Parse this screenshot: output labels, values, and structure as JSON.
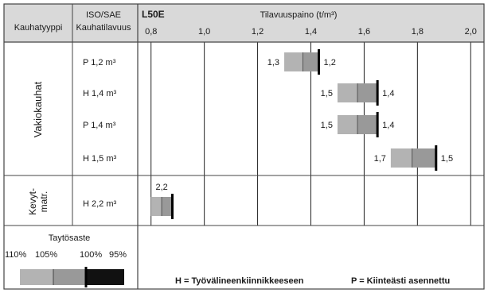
{
  "header": {
    "col1_label": "Kauhatyyppi",
    "col2_line1": "ISO/SAE",
    "col2_line2": "Kauhatilavuus",
    "model": "L50E",
    "axis_title": "Tilavuuspaino (t/m³)"
  },
  "groups": [
    {
      "label": "Vakiokauhat"
    },
    {
      "label_line1": "Kevyt-",
      "label_line2": "matr."
    }
  ],
  "legend": {
    "title": "Taytösaste",
    "levels": [
      "110%",
      "105%",
      "100%",
      "95%"
    ]
  },
  "footer": {
    "h_note": "H = Työvälineenkiinnikkeeseen",
    "p_note": "P = Kiinteästi asennettu"
  },
  "colors": {
    "border": "#444444",
    "header_bg": "#d9d9d9",
    "bar_light": "#b3b3b3",
    "bar_mid": "#999999",
    "marker": "#000000",
    "grid": "#222222"
  },
  "chart_data": {
    "type": "range-bar",
    "xlim": [
      0.75,
      2.05
    ],
    "ticks": [
      "0,8",
      "1,0",
      "1,2",
      "1,4",
      "1,6",
      "1,8",
      "2,0"
    ],
    "tick_values": [
      0.8,
      1.0,
      1.2,
      1.4,
      1.6,
      1.8,
      2.0
    ],
    "rows": [
      {
        "group": 0,
        "label": "P 1,2 m³",
        "fill_110": 1.3,
        "fill_105": 1.37,
        "fill_100": 1.43,
        "fill_95": 1.5,
        "left_label": "1,3",
        "right_label": "1,2"
      },
      {
        "group": 0,
        "label": "H 1,4 m³",
        "fill_110": 1.5,
        "fill_105": 1.575,
        "fill_100": 1.65,
        "fill_95": 1.73,
        "left_label": "1,5",
        "right_label": "1,4"
      },
      {
        "group": 0,
        "label": "P 1,4 m³",
        "fill_110": 1.5,
        "fill_105": 1.575,
        "fill_100": 1.65,
        "fill_95": 1.73,
        "left_label": "1,5",
        "right_label": "1,4"
      },
      {
        "group": 0,
        "label": "H 1,5 m³",
        "fill_110": 1.7,
        "fill_105": 1.78,
        "fill_100": 1.87,
        "fill_95": 1.96,
        "left_label": "1,7",
        "right_label": "1,5"
      },
      {
        "group": 1,
        "label": "H 2,2 m³",
        "fill_110": 0.8,
        "fill_105": 0.84,
        "fill_100": 0.88,
        "fill_95": 0.92,
        "left_label": "",
        "right_label": "",
        "top_label": "2,2"
      }
    ]
  }
}
